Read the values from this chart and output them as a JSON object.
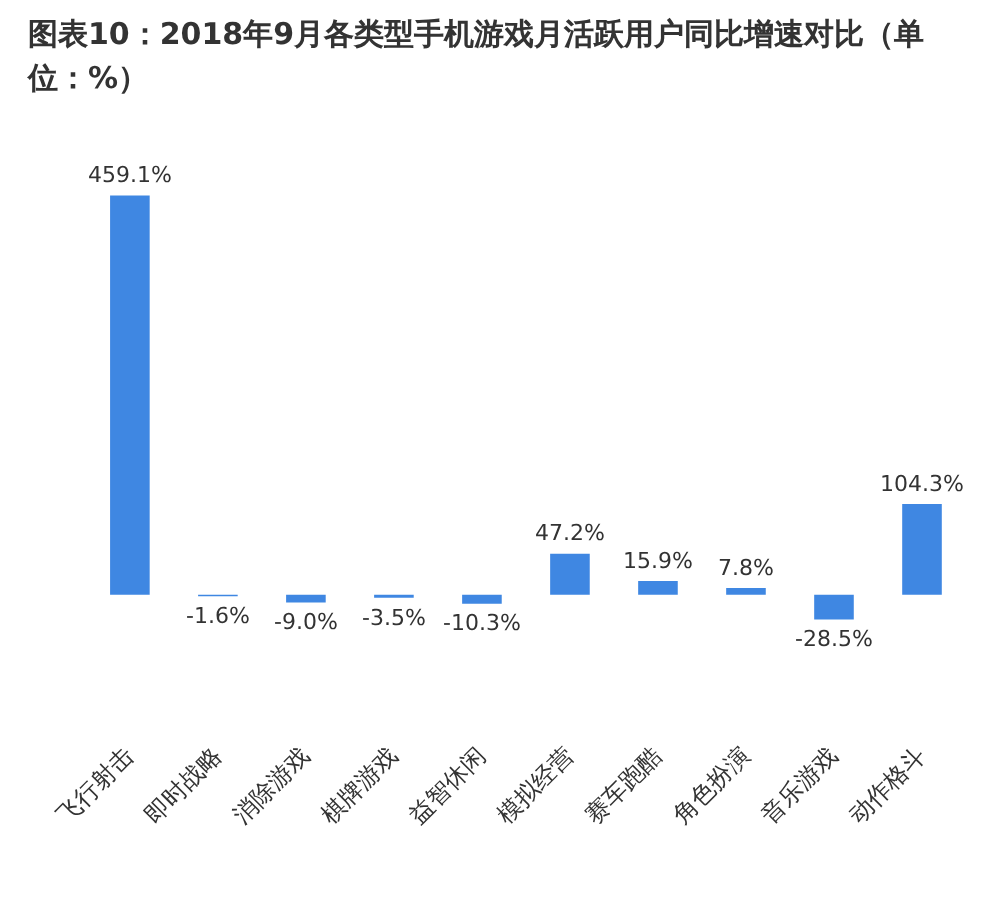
{
  "chart_data": {
    "type": "bar",
    "title": "图表10：2018年9月各类型手机游戏月活跃用户同比增速对比（单位：%）",
    "categories": [
      "飞行射击",
      "即时战略",
      "消除游戏",
      "棋牌游戏",
      "益智休闲",
      "模拟经营",
      "赛车跑酷",
      "角色扮演",
      "音乐游戏",
      "动作格斗"
    ],
    "values": [
      459.1,
      -1.6,
      -9.0,
      -3.5,
      -10.3,
      47.2,
      15.9,
      7.8,
      -28.5,
      104.3
    ],
    "value_labels": [
      "459.1%",
      "-1.6%",
      "-9.0%",
      "-3.5%",
      "-10.3%",
      "47.2%",
      "15.9%",
      "7.8%",
      "-28.5%",
      "104.3%"
    ],
    "color": "#3f87e2",
    "grid": false,
    "legend": false
  }
}
